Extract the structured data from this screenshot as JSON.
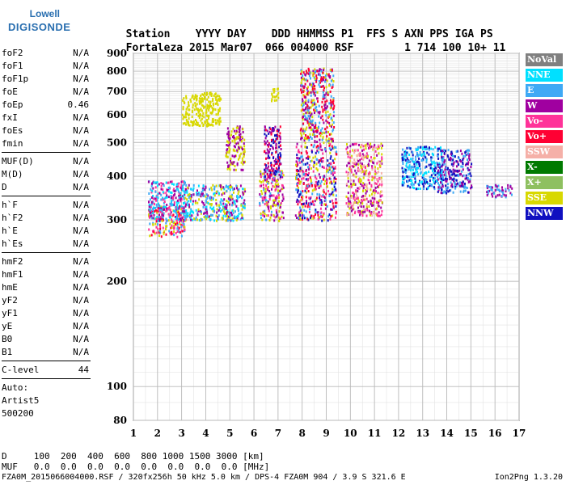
{
  "logo": {
    "line1": "Lowell",
    "line2": "DIGISONDE"
  },
  "header": {
    "labels": [
      "Station",
      "YYYY",
      "DAY",
      "DDD",
      "HHMMSS",
      "P1",
      "FFS",
      "S",
      "AXN",
      "PPS",
      "IGA",
      "PS"
    ],
    "values": [
      "Fortaleza",
      "2015",
      "Mar07",
      "066",
      "004000",
      "RSF",
      "",
      "1",
      "714",
      "100",
      "10+",
      "11"
    ]
  },
  "params_groups": [
    [
      {
        "name": "foF2",
        "value": "N/A"
      },
      {
        "name": "foF1",
        "value": "N/A"
      },
      {
        "name": "foF1p",
        "value": "N/A"
      },
      {
        "name": "foE",
        "value": "N/A"
      },
      {
        "name": "foEp",
        "value": "0.46"
      },
      {
        "name": "fxI",
        "value": "N/A"
      },
      {
        "name": "foEs",
        "value": "N/A"
      },
      {
        "name": "fmin",
        "value": "N/A"
      }
    ],
    [
      {
        "name": "MUF(D)",
        "value": "N/A"
      },
      {
        "name": "M(D)",
        "value": "N/A"
      },
      {
        "name": "D",
        "value": "N/A"
      }
    ],
    [
      {
        "name": "h`F",
        "value": "N/A"
      },
      {
        "name": "h`F2",
        "value": "N/A"
      },
      {
        "name": "h`E",
        "value": "N/A"
      },
      {
        "name": "h`Es",
        "value": "N/A"
      }
    ],
    [
      {
        "name": "hmF2",
        "value": "N/A"
      },
      {
        "name": "hmF1",
        "value": "N/A"
      },
      {
        "name": "hmE",
        "value": "N/A"
      },
      {
        "name": "yF2",
        "value": "N/A"
      },
      {
        "name": "yF1",
        "value": "N/A"
      },
      {
        "name": "yE",
        "value": "N/A"
      },
      {
        "name": "B0",
        "value": "N/A"
      },
      {
        "name": "B1",
        "value": "N/A"
      }
    ],
    [
      {
        "name": "C-level",
        "value": "44"
      }
    ]
  ],
  "auto": {
    "line1": "Auto:",
    "line2": "Artist5",
    "line3": "500200"
  },
  "legend": [
    {
      "label": "NoVal",
      "color": "#808080"
    },
    {
      "label": "NNE",
      "color": "#00e0ff"
    },
    {
      "label": "E",
      "color": "#3fa9f5"
    },
    {
      "label": "W",
      "color": "#a000a0"
    },
    {
      "label": "Vo-",
      "color": "#ff3399"
    },
    {
      "label": "Vo+",
      "color": "#ff0033"
    },
    {
      "label": "SSW",
      "color": "#f5b0a8"
    },
    {
      "label": "X-",
      "color": "#007a00"
    },
    {
      "label": "X+",
      "color": "#8ec060"
    },
    {
      "label": "SSE",
      "color": "#d8d800"
    },
    {
      "label": "NNW",
      "color": "#1010c0"
    }
  ],
  "bottom_table": {
    "row1_label": "D",
    "row1_values": [
      "100",
      "200",
      "400",
      "600",
      "800",
      "1000",
      "1500",
      "3000",
      "[km]"
    ],
    "row2_label": "MUF",
    "row2_values": [
      "0.0",
      "0.0",
      "0.0",
      "0.0",
      "0.0",
      "0.0",
      "0.0",
      "0.0",
      "[MHz]"
    ]
  },
  "footer": {
    "text": "FZA0M_2015066004000.RSF / 320fx256h 50 kHz 5.0 km / DPS-4 FZA0M 904 / 3.9 S 321.6 E",
    "version": "Ion2Png 1.3.20"
  },
  "chart_data": {
    "type": "scatter",
    "title": "",
    "xlabel": "",
    "ylabel": "",
    "xlim": [
      1,
      17
    ],
    "ylim": [
      80,
      900
    ],
    "y_scale": "log",
    "x_ticks": [
      1,
      2,
      3,
      4,
      5,
      6,
      7,
      8,
      9,
      10,
      11,
      12,
      13,
      14,
      15,
      16,
      17
    ],
    "y_ticks": [
      80,
      100,
      200,
      300,
      400,
      500,
      600,
      700,
      800,
      900
    ],
    "grid": true,
    "clusters": [
      {
        "x": [
          1.6,
          3.1
        ],
        "y": [
          270,
          330
        ],
        "colors": [
          "#ff0033",
          "#ff3399",
          "#d8d800",
          "#3fa9f5"
        ]
      },
      {
        "x": [
          1.6,
          3.2
        ],
        "y": [
          300,
          390
        ],
        "colors": [
          "#a000a0",
          "#3fa9f5",
          "#ff3399",
          "#00e0ff"
        ]
      },
      {
        "x": [
          3.0,
          5.6
        ],
        "y": [
          300,
          380
        ],
        "colors": [
          "#3fa9f5",
          "#00e0ff",
          "#d8d800",
          "#a000a0"
        ]
      },
      {
        "x": [
          3.0,
          4.6
        ],
        "y": [
          560,
          700
        ],
        "colors": [
          "#d8d800"
        ]
      },
      {
        "x": [
          4.8,
          5.6
        ],
        "y": [
          420,
          560
        ],
        "colors": [
          "#a000a0",
          "#d8d800"
        ]
      },
      {
        "x": [
          6.2,
          7.2
        ],
        "y": [
          300,
          420
        ],
        "colors": [
          "#d8d800",
          "#3fa9f5",
          "#ff3399",
          "#a000a0"
        ]
      },
      {
        "x": [
          6.4,
          7.1
        ],
        "y": [
          400,
          560
        ],
        "colors": [
          "#1010c0",
          "#a000a0",
          "#ff0033"
        ]
      },
      {
        "x": [
          6.7,
          7.0
        ],
        "y": [
          660,
          720
        ],
        "colors": [
          "#d8d800"
        ]
      },
      {
        "x": [
          7.7,
          9.4
        ],
        "y": [
          300,
          500
        ],
        "colors": [
          "#1010c0",
          "#3fa9f5",
          "#d8d800",
          "#a000a0",
          "#ff3399",
          "#ff0033"
        ]
      },
      {
        "x": [
          7.9,
          9.3
        ],
        "y": [
          500,
          820
        ],
        "colors": [
          "#a000a0",
          "#ff0033",
          "#d8d800",
          "#3fa9f5"
        ]
      },
      {
        "x": [
          9.8,
          11.3
        ],
        "y": [
          310,
          500
        ],
        "colors": [
          "#f5b0a8",
          "#d8d800",
          "#ff3399",
          "#a000a0"
        ]
      },
      {
        "x": [
          12.1,
          13.8
        ],
        "y": [
          370,
          490
        ],
        "colors": [
          "#1010c0",
          "#3fa9f5",
          "#00e0ff"
        ]
      },
      {
        "x": [
          13.6,
          15.0
        ],
        "y": [
          360,
          480
        ],
        "colors": [
          "#a000a0",
          "#3fa9f5",
          "#1010c0"
        ]
      },
      {
        "x": [
          15.6,
          16.7
        ],
        "y": [
          350,
          380
        ],
        "colors": [
          "#3fa9f5",
          "#a000a0"
        ]
      }
    ]
  }
}
